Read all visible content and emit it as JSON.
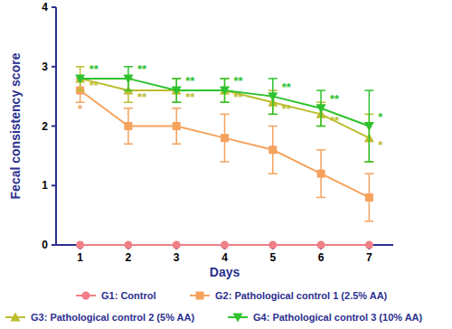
{
  "chart_data": {
    "type": "line",
    "x_label": "Days",
    "y_label": "Fecal consistency score",
    "x": [
      1,
      2,
      3,
      4,
      5,
      6,
      7
    ],
    "xlim": [
      0.5,
      7.5
    ],
    "xticks": [
      1,
      2,
      3,
      4,
      5,
      6,
      7
    ],
    "ylim": [
      0,
      4
    ],
    "yticks": [
      0,
      1,
      2,
      3,
      4
    ],
    "grid": false,
    "legend": "bottom",
    "series": [
      {
        "name": "G1: Control",
        "color": "#f07f86",
        "marker": "circle",
        "values": [
          0,
          0,
          0,
          0,
          0,
          0,
          0
        ],
        "errors": [
          0,
          0,
          0,
          0,
          0,
          0,
          0
        ],
        "significance": [
          null,
          null,
          null,
          null,
          null,
          null,
          null
        ]
      },
      {
        "name": "G2: Pathological control 1 (2.5% AA)",
        "color": "#f5a25d",
        "marker": "square",
        "values": [
          2.6,
          2.0,
          2.0,
          1.8,
          1.6,
          1.2,
          0.8
        ],
        "errors": [
          0.2,
          0.3,
          0.3,
          0.4,
          0.4,
          0.4,
          0.4
        ],
        "significance": [
          "*",
          null,
          null,
          null,
          null,
          null,
          null
        ]
      },
      {
        "name": "G3: Pathological control 2 (5% AA)",
        "color": "#bcbc2e",
        "marker": "triangle-up",
        "values": [
          2.8,
          2.6,
          2.6,
          2.6,
          2.4,
          2.2,
          1.8
        ],
        "errors": [
          0.2,
          0.2,
          0.2,
          0.2,
          0.2,
          0.2,
          0.4
        ],
        "significance": [
          "**",
          "**",
          "**",
          "**",
          "**",
          "**",
          "*"
        ]
      },
      {
        "name": "G4: Pathological control 3 (10% AA)",
        "color": "#2ec22e",
        "marker": "triangle-down",
        "values": [
          2.8,
          2.8,
          2.6,
          2.6,
          2.5,
          2.3,
          2.0
        ],
        "errors": [
          0,
          0.2,
          0.2,
          0.2,
          0.3,
          0.3,
          0.6
        ],
        "significance": [
          "**",
          "**",
          "**",
          "**",
          "**",
          "**",
          "*"
        ]
      }
    ]
  }
}
